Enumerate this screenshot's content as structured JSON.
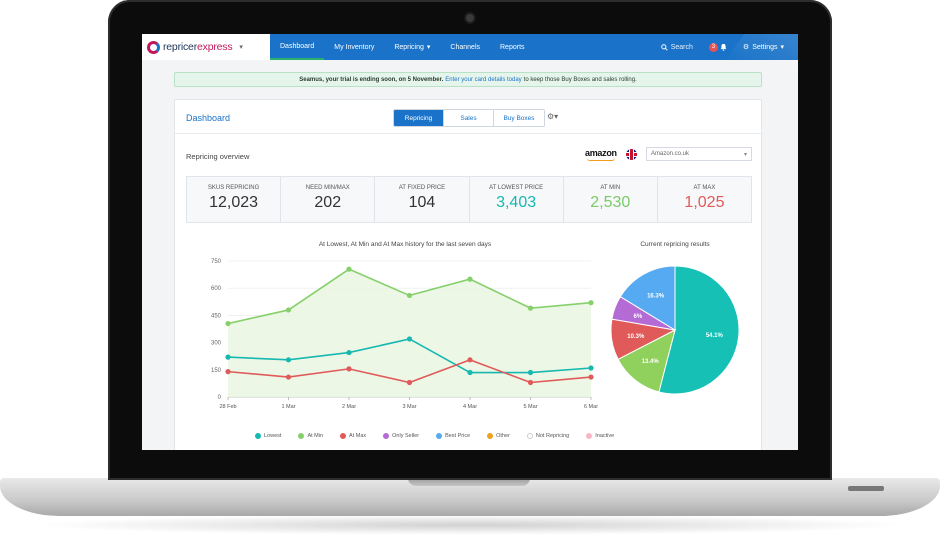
{
  "brand": {
    "part1": "repricer",
    "part2": "express"
  },
  "nav": {
    "items": [
      "Dashboard",
      "My Inventory",
      "Repricing",
      "Channels",
      "Reports"
    ],
    "search_label": "Search",
    "notification_count": "3",
    "settings_label": "Settings"
  },
  "banner": {
    "bold_text": "Seamus, your trial is ending soon, on 5 November.",
    "link_text": "Enter your card details today",
    "rest_text": "to keep those Buy Boxes and sales rolling."
  },
  "dashboard": {
    "title": "Dashboard",
    "tabs": [
      "Repricing",
      "Sales",
      "Buy Boxes"
    ],
    "overview_title": "Repricing overview",
    "amazon_logo": "amazon",
    "marketplace": "Amazon.co.uk"
  },
  "stats": [
    {
      "label": "SKUs Repricing",
      "value": "12,023",
      "color": "#333333"
    },
    {
      "label": "Need Min/Max",
      "value": "202",
      "color": "#333333"
    },
    {
      "label": "At Fixed Price",
      "value": "104",
      "color": "#333333"
    },
    {
      "label": "At Lowest Price",
      "value": "3,403",
      "color": "#17b8b0"
    },
    {
      "label": "At Min",
      "value": "2,530",
      "color": "#7cc96a"
    },
    {
      "label": "At Max",
      "value": "1,025",
      "color": "#e05a5a"
    }
  ],
  "chart_data": [
    {
      "type": "line",
      "title": "At Lowest, At Min and At Max history for the last seven days",
      "x": [
        "28 Feb",
        "1 Mar",
        "2 Mar",
        "3 Mar",
        "4 Mar",
        "5 Mar",
        "6 Mar"
      ],
      "ylim": [
        0,
        750
      ],
      "yticks": [
        0,
        150,
        300,
        450,
        600,
        750
      ],
      "grid": true,
      "series": [
        {
          "name": "At Min",
          "color": "#86d06b",
          "values": [
            405,
            480,
            705,
            560,
            650,
            490,
            520
          ]
        },
        {
          "name": "Lowest",
          "color": "#17b8b0",
          "values": [
            220,
            205,
            245,
            320,
            135,
            135,
            160
          ]
        },
        {
          "name": "At Max",
          "color": "#e05a5a",
          "values": [
            140,
            110,
            155,
            80,
            205,
            80,
            110
          ]
        }
      ]
    },
    {
      "type": "pie",
      "title": "Current repricing results",
      "slices": [
        {
          "label": "54.1%",
          "value": 54.1,
          "color": "#17c0b5"
        },
        {
          "label": "13.4%",
          "value": 13.4,
          "color": "#8fd15c"
        },
        {
          "label": "10.3%",
          "value": 10.3,
          "color": "#e05a5a"
        },
        {
          "label": "6%",
          "value": 6.0,
          "color": "#b46bd6"
        },
        {
          "label": "16.3%",
          "value": 16.3,
          "color": "#55aaf2"
        }
      ]
    }
  ],
  "legend": [
    {
      "label": "Lowest",
      "color": "#17b8b0"
    },
    {
      "label": "At Min",
      "color": "#86d06b"
    },
    {
      "label": "At Max",
      "color": "#e05a5a"
    },
    {
      "label": "Only Seller",
      "color": "#b46bd6"
    },
    {
      "label": "Best Price",
      "color": "#55aaf2"
    },
    {
      "label": "Other",
      "color": "#f0a020"
    },
    {
      "label": "Not Repricing",
      "color": "#ffffff"
    },
    {
      "label": "Inactive",
      "color": "#f7b6c8"
    }
  ]
}
